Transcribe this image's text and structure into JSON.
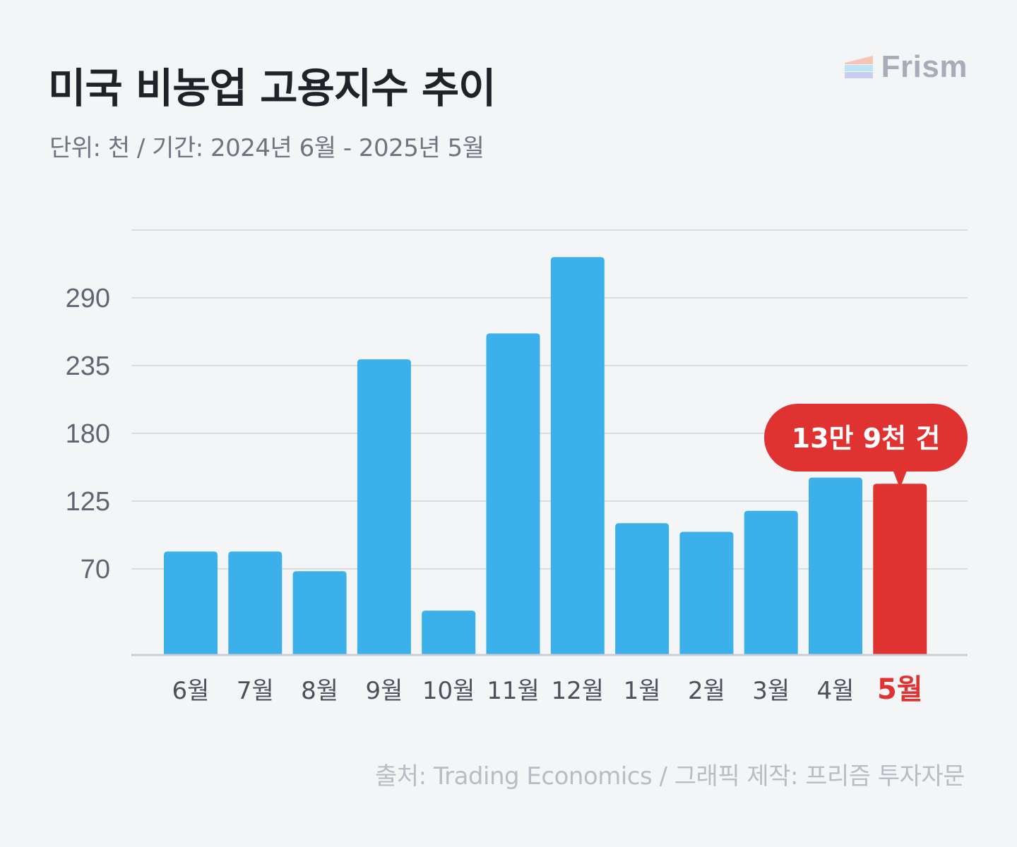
{
  "title": "미국 비농업 고용지수 추이",
  "subtitle": "단위: 천 / 기간: 2024년 6월 - 2025년 5월",
  "brand": {
    "name": "Frism",
    "icon": "frism-logo-icon"
  },
  "source": "출처: Trading Economics / 그래픽 제작: 프리즘 투자자문",
  "colors": {
    "bar": "#3bb0ea",
    "highlight": "#e03331",
    "grid": "#d9dce4",
    "axis": "#c8ccd6"
  },
  "chart_data": {
    "type": "bar",
    "categories": [
      "6월",
      "7월",
      "8월",
      "9월",
      "10월",
      "11월",
      "12월",
      "1월",
      "2월",
      "3월",
      "4월",
      "5월"
    ],
    "values": [
      84,
      84,
      68,
      240,
      36,
      261,
      323,
      107,
      100,
      117,
      144,
      139
    ],
    "yticks": [
      70,
      125,
      180,
      235,
      290
    ],
    "ylim": [
      0,
      345
    ],
    "grid": true,
    "highlight_index": 11,
    "annotation": "13만 9천 건"
  }
}
